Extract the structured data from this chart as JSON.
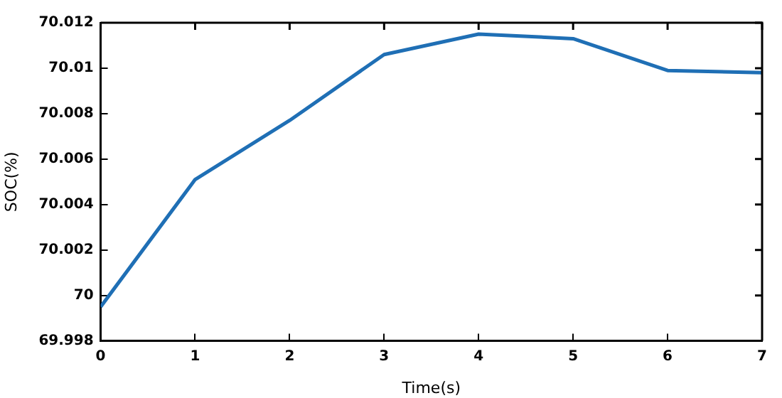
{
  "chart_data": {
    "type": "line",
    "xlabel": "Time(s)",
    "ylabel": "SOC(%)",
    "x": [
      0,
      1,
      2,
      3,
      4,
      5,
      6,
      7
    ],
    "series": [
      {
        "color": "#1f6fb5",
        "values": [
          69.9995,
          70.0051,
          70.0077,
          70.0106,
          70.0115,
          70.0113,
          70.0099,
          70.0098
        ]
      }
    ],
    "xlim": [
      0,
      7
    ],
    "xticks": [
      0,
      1,
      2,
      3,
      4,
      5,
      6,
      7
    ],
    "ylim": [
      69.998,
      70.012
    ],
    "yticks": [
      69.998,
      70,
      70.002,
      70.004,
      70.006,
      70.008,
      70.01,
      70.012
    ],
    "grid": false,
    "legend": false,
    "marker": "none",
    "line_style": "solid"
  }
}
